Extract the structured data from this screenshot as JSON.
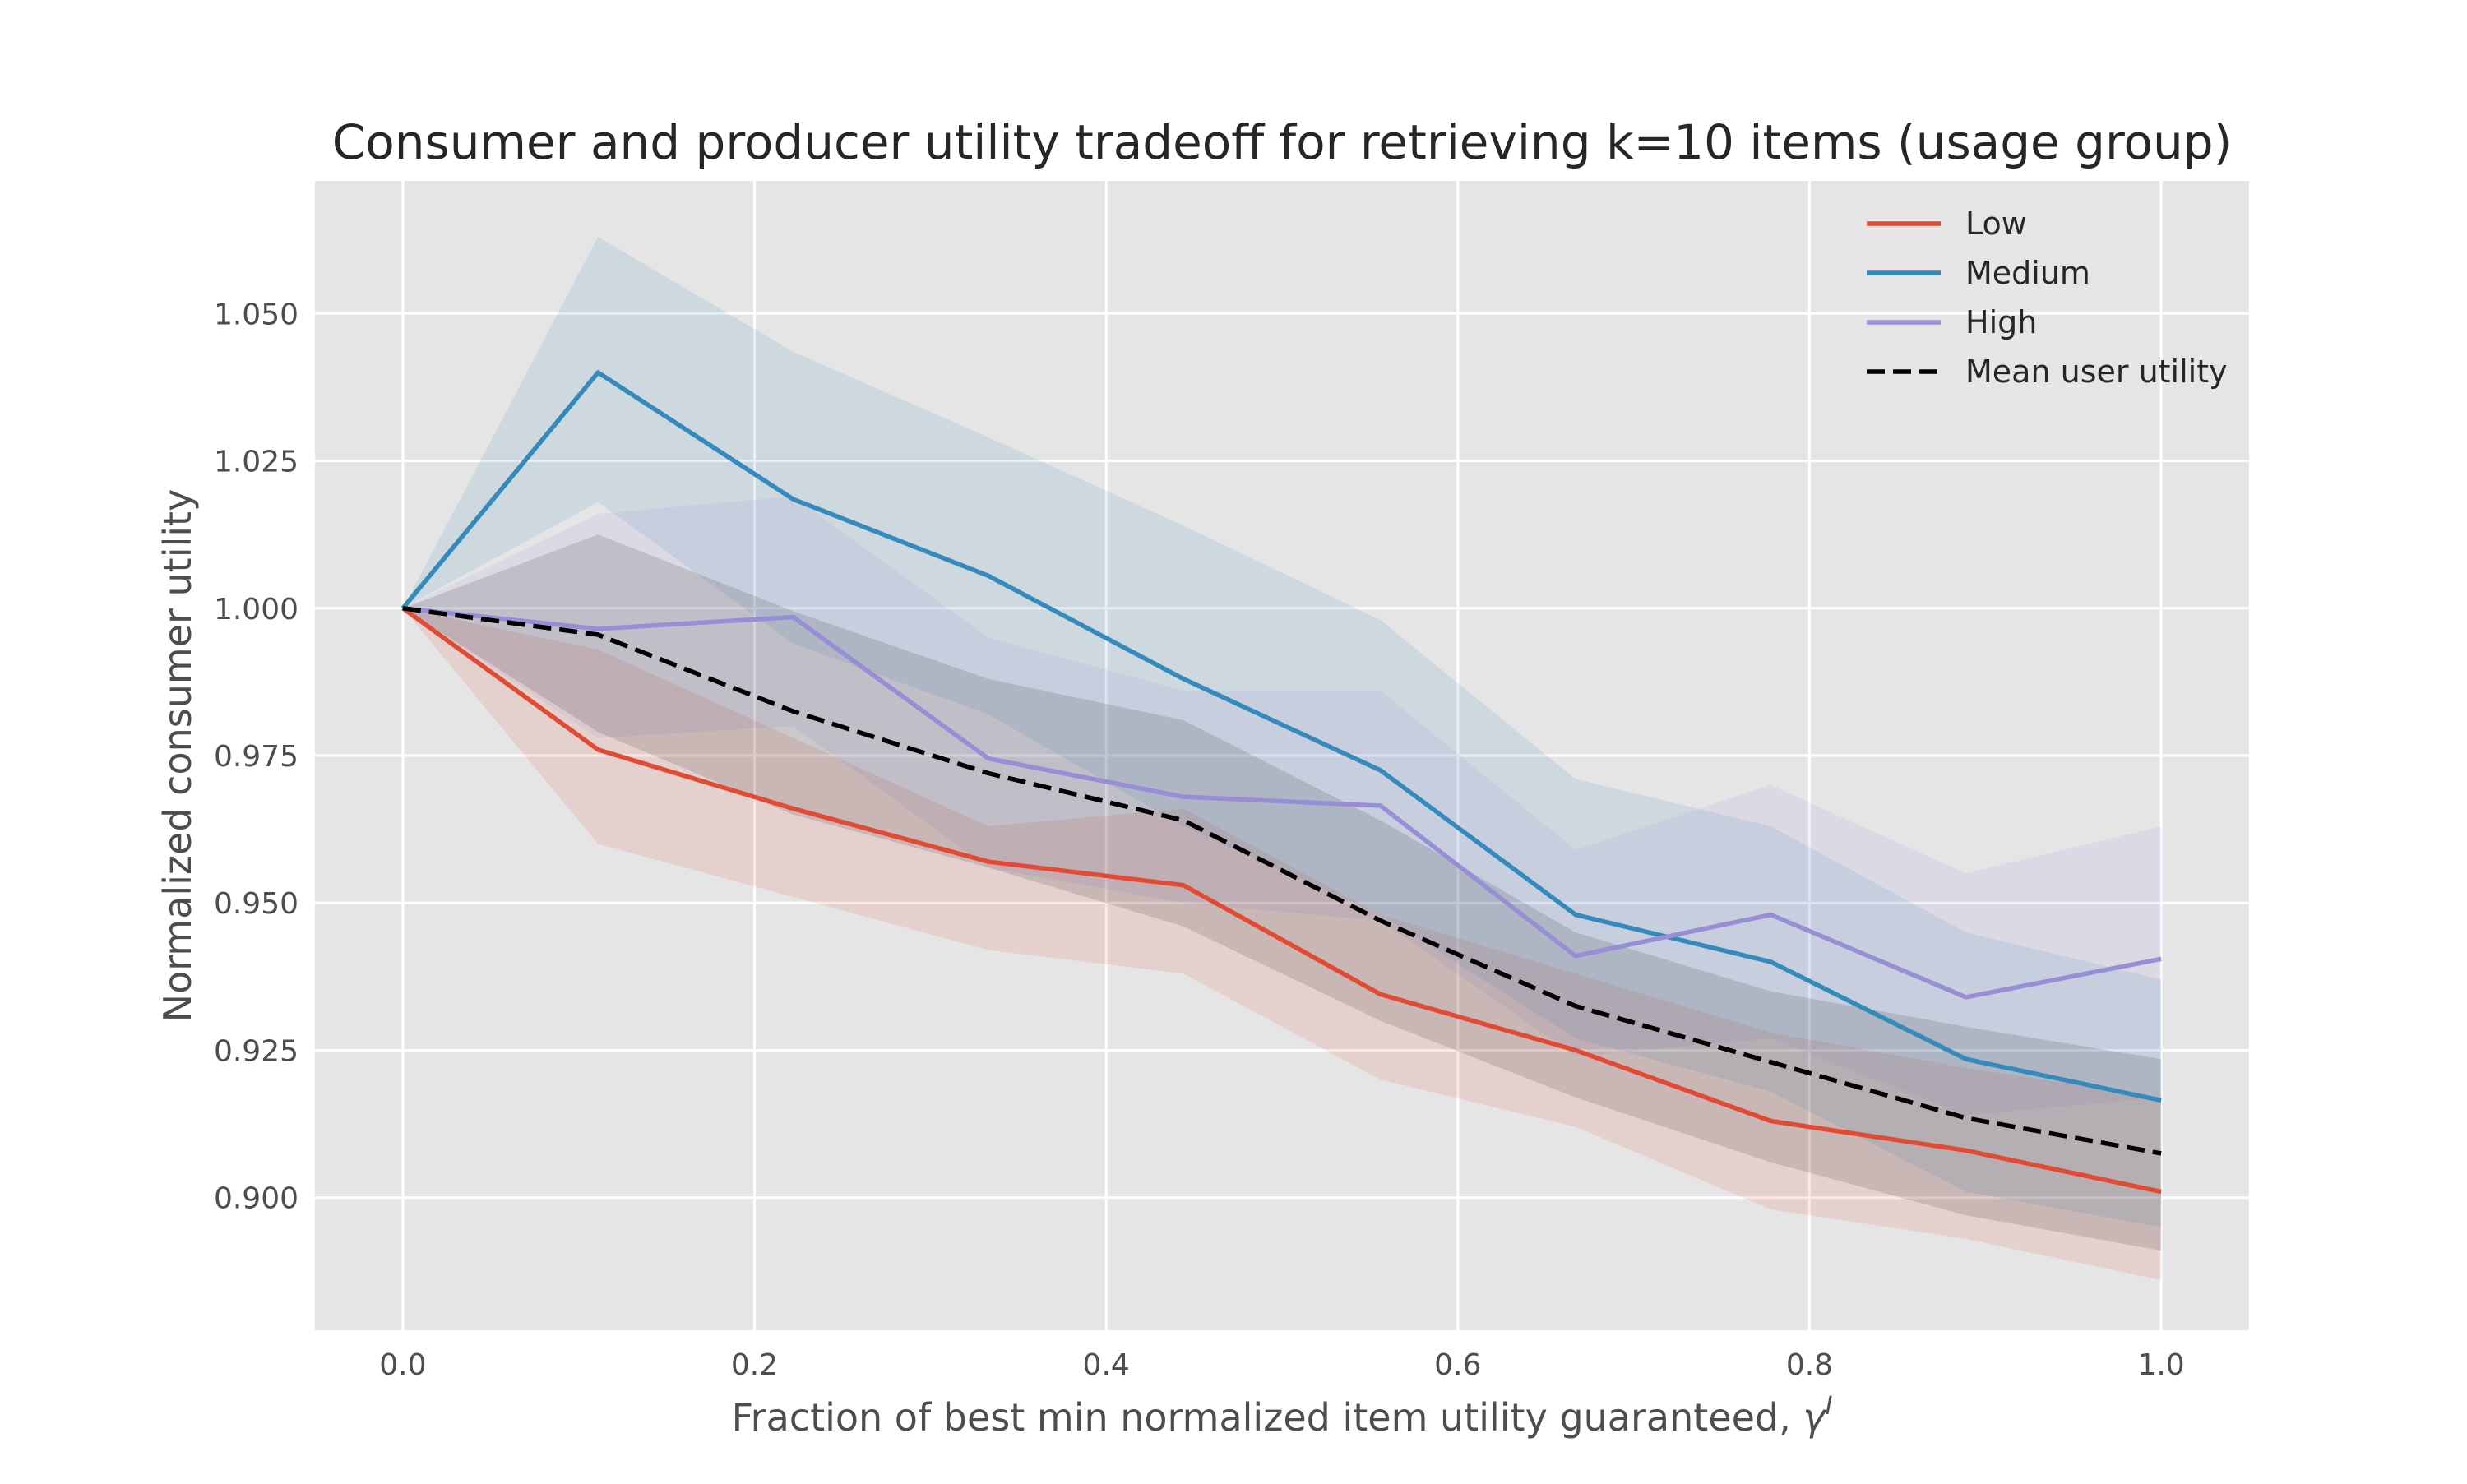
{
  "chart_data": {
    "type": "line",
    "title": "Consumer and producer utility tradeoff for retrieving k=10 items (usage  group)",
    "xlabel": "Fraction of best min normalized item utility guaranteed, ",
    "xlabel_symbol": "γ",
    "xlabel_superscript": "I",
    "ylabel": "Normalized consumer utility",
    "xlim": [
      -0.05,
      1.05
    ],
    "ylim": [
      0.8775,
      1.0725
    ],
    "xticks": [
      0.0,
      0.2,
      0.4,
      0.6,
      0.8,
      1.0
    ],
    "xtick_labels": [
      "0.0",
      "0.2",
      "0.4",
      "0.6",
      "0.8",
      "1.0"
    ],
    "yticks": [
      0.9,
      0.925,
      0.95,
      0.975,
      1.0,
      1.025,
      1.05
    ],
    "ytick_labels": [
      "0.900",
      "0.925",
      "0.950",
      "0.975",
      "1.000",
      "1.025",
      "1.050"
    ],
    "grid": true,
    "background": "#e5e5e5",
    "legend_position": "top-right",
    "x": [
      0.0,
      0.111,
      0.222,
      0.333,
      0.444,
      0.556,
      0.667,
      0.778,
      0.889,
      1.0
    ],
    "series": [
      {
        "name": "Low",
        "color": "#e24a33",
        "style": "solid",
        "values": [
          1.0,
          0.976,
          0.966,
          0.957,
          0.953,
          0.9345,
          0.925,
          0.913,
          0.908,
          0.901
        ],
        "band_upper": [
          1.0,
          0.993,
          0.978,
          0.963,
          0.966,
          0.948,
          0.938,
          0.928,
          0.922,
          0.917
        ],
        "band_lower": [
          1.0,
          0.96,
          0.951,
          0.942,
          0.938,
          0.92,
          0.912,
          0.898,
          0.893,
          0.886
        ]
      },
      {
        "name": "Medium",
        "color": "#348abd",
        "style": "solid",
        "values": [
          1.0,
          1.04,
          1.0185,
          1.0055,
          0.988,
          0.9725,
          0.948,
          0.94,
          0.9235,
          0.9165
        ],
        "band_upper": [
          1.0,
          1.063,
          1.0435,
          1.029,
          1.014,
          0.998,
          0.971,
          0.963,
          0.945,
          0.937
        ],
        "band_lower": [
          1.0,
          1.018,
          0.994,
          0.982,
          0.963,
          0.948,
          0.927,
          0.918,
          0.901,
          0.895
        ]
      },
      {
        "name": "High",
        "color": "#988ed5",
        "style": "solid",
        "values": [
          1.0,
          0.9965,
          0.9985,
          0.9745,
          0.968,
          0.9665,
          0.941,
          0.948,
          0.934,
          0.9405
        ],
        "band_upper": [
          1.0,
          1.016,
          1.019,
          0.995,
          0.986,
          0.986,
          0.959,
          0.97,
          0.955,
          0.963
        ],
        "band_lower": [
          1.0,
          0.978,
          0.98,
          0.956,
          0.95,
          0.947,
          0.924,
          0.927,
          0.914,
          0.917
        ]
      },
      {
        "name": "Mean user utility",
        "color": "#000000",
        "style": "dashed",
        "values": [
          1.0,
          0.9955,
          0.9825,
          0.972,
          0.964,
          0.947,
          0.9325,
          0.923,
          0.9135,
          0.9075
        ],
        "band_upper": [
          1.0,
          1.0125,
          0.9995,
          0.988,
          0.981,
          0.964,
          0.945,
          0.935,
          0.929,
          0.9235
        ],
        "band_lower": [
          1.0,
          0.979,
          0.965,
          0.956,
          0.946,
          0.93,
          0.917,
          0.906,
          0.897,
          0.891
        ]
      }
    ]
  }
}
